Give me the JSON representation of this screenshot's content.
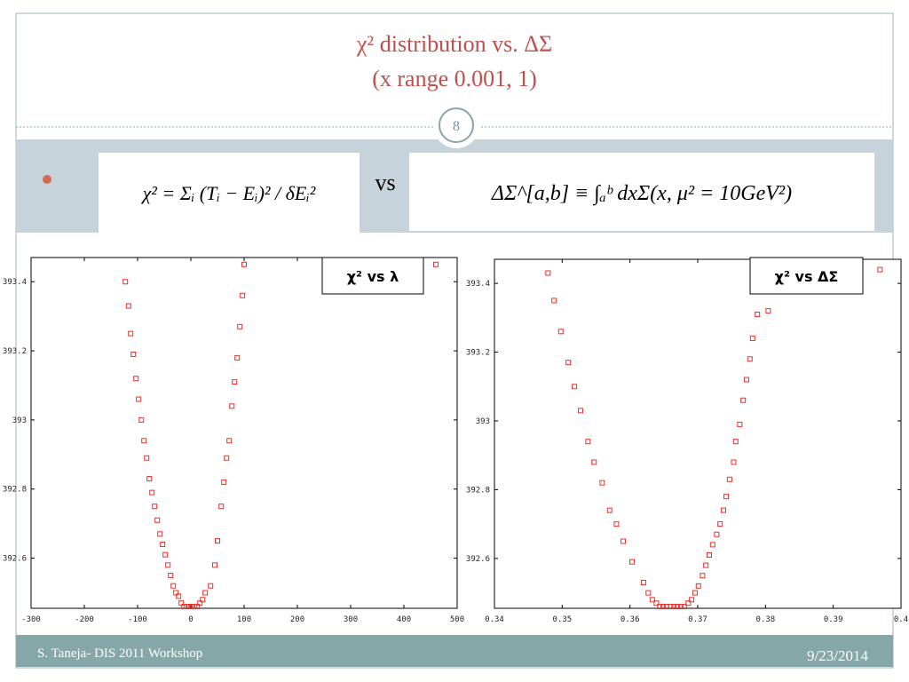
{
  "slide": {
    "title": [
      "χ²  distribution vs. ΔΣ",
      "(x range 0.001, 1)"
    ],
    "page_number": "8",
    "formula_left": "χ² = Σᵢ (Tᵢ − Eᵢ)² / δEᵢ²",
    "formula_vs": "vs",
    "formula_right": "ΔΣ^[a,b] ≡ ∫ₐᵇ dxΣ(x, μ² = 10GeV²)",
    "footer_left": "S. Taneja- DIS 2011  Workshop",
    "footer_right": "9/23/2014"
  },
  "chart_data": [
    {
      "type": "scatter",
      "label": "χ²  vs  λ",
      "color": "#e8312a",
      "x": [
        -123,
        -117,
        -113,
        -108,
        -103,
        -98,
        -93,
        -88,
        -83,
        -78,
        -73,
        -68,
        -63,
        -58,
        -53,
        -48,
        -43,
        -38,
        -33,
        -28,
        -23,
        -18,
        -13,
        -8,
        -3,
        2,
        7,
        12,
        17,
        22,
        27,
        37,
        45,
        50,
        57,
        62,
        67,
        72,
        77,
        82,
        87,
        92,
        97,
        100,
        460
      ],
      "values": [
        393.4,
        393.33,
        393.25,
        393.19,
        393.12,
        393.06,
        393.0,
        392.94,
        392.89,
        392.83,
        392.79,
        392.75,
        392.71,
        392.67,
        392.64,
        392.61,
        392.58,
        392.55,
        392.52,
        392.5,
        392.49,
        392.47,
        392.46,
        392.46,
        392.46,
        392.46,
        392.46,
        392.46,
        392.47,
        392.48,
        392.5,
        392.52,
        392.58,
        392.65,
        392.75,
        392.82,
        392.89,
        392.94,
        393.04,
        393.11,
        393.18,
        393.27,
        393.36,
        393.45,
        393.45
      ],
      "xlim": [
        -300,
        500
      ],
      "xticks": [
        -300,
        -200,
        -100,
        0,
        100,
        200,
        300,
        400,
        500
      ],
      "ylim": [
        392.455,
        393.47
      ],
      "yticks": [
        392.6,
        392.8,
        393,
        393.2,
        393.4
      ]
    },
    {
      "type": "scatter",
      "label": "χ²  vs ΔΣ",
      "color": "#e8312a",
      "x": [
        0.3479,
        0.3488,
        0.3498,
        0.3509,
        0.3518,
        0.3527,
        0.3538,
        0.3547,
        0.3559,
        0.357,
        0.358,
        0.359,
        0.3603,
        0.362,
        0.3627,
        0.3633,
        0.3639,
        0.3644,
        0.3649,
        0.3654,
        0.366,
        0.3665,
        0.367,
        0.3675,
        0.368,
        0.3686,
        0.3691,
        0.3696,
        0.3701,
        0.3707,
        0.3712,
        0.3717,
        0.3722,
        0.3728,
        0.3733,
        0.3738,
        0.3742,
        0.3747,
        0.3753,
        0.3756,
        0.3762,
        0.3767,
        0.3772,
        0.3777,
        0.3781,
        0.3788,
        0.3804,
        0.3969
      ],
      "values": [
        393.43,
        393.35,
        393.26,
        393.17,
        393.1,
        393.03,
        392.94,
        392.88,
        392.82,
        392.74,
        392.7,
        392.65,
        392.59,
        392.53,
        392.5,
        392.48,
        392.47,
        392.46,
        392.46,
        392.46,
        392.46,
        392.46,
        392.46,
        392.46,
        392.46,
        392.47,
        392.48,
        392.5,
        392.52,
        392.55,
        392.58,
        392.61,
        392.64,
        392.67,
        392.7,
        392.74,
        392.78,
        392.83,
        392.88,
        392.94,
        392.99,
        393.06,
        393.12,
        393.18,
        393.24,
        393.31,
        393.32,
        393.44
      ],
      "xlim": [
        0.34,
        0.4
      ],
      "xticks": [
        0.34,
        0.35,
        0.36,
        0.37,
        0.38,
        0.39,
        0.4
      ],
      "ylim": [
        392.455,
        393.47
      ],
      "yticks": [
        392.6,
        392.8,
        393,
        393.2,
        393.4
      ]
    }
  ]
}
